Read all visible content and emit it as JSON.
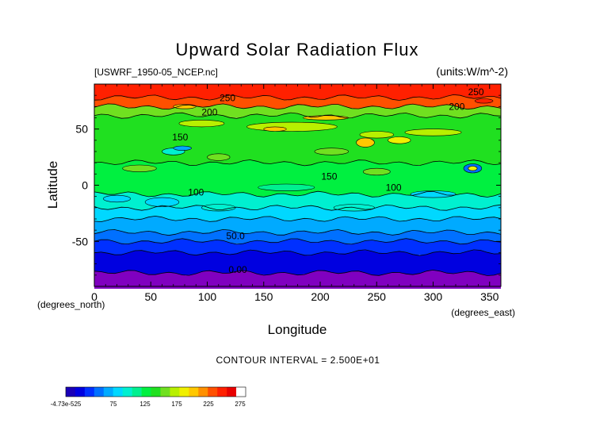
{
  "chart_data": {
    "type": "contour",
    "title": "Upward Solar Radiation Flux",
    "file_label": "[USWRF_1950-05_NCEP.nc]",
    "units_label": "(units:W/m^-2)",
    "xlabel": "Longitude",
    "ylabel": "Latitude",
    "x_unit_label": "(degrees_east)",
    "y_unit_label": "(degrees_north)",
    "xlim": [
      0,
      360
    ],
    "ylim": [
      -90,
      90
    ],
    "x_ticks": [
      0,
      50,
      100,
      150,
      200,
      250,
      300,
      350
    ],
    "y_ticks": [
      -50,
      0,
      50
    ],
    "contour_interval_text": "CONTOUR INTERVAL = 2.500E+01",
    "contour_labels": [
      {
        "text": "250",
        "lon": 118,
        "lat": 75
      },
      {
        "text": "200",
        "lon": 102,
        "lat": 62
      },
      {
        "text": "150",
        "lon": 76,
        "lat": 40
      },
      {
        "text": "150",
        "lon": 208,
        "lat": 5
      },
      {
        "text": "100",
        "lon": 90,
        "lat": -9
      },
      {
        "text": "100",
        "lon": 265,
        "lat": -5
      },
      {
        "text": "50.0",
        "lon": 125,
        "lat": -48
      },
      {
        "text": "0.00",
        "lon": 127,
        "lat": -78
      },
      {
        "text": "250",
        "lon": 338,
        "lat": 80
      },
      {
        "text": "200",
        "lon": 321,
        "lat": 67
      }
    ],
    "colorbar": {
      "tick_labels": [
        "-4.73e-525",
        "75",
        "125",
        "175",
        "225",
        "275"
      ],
      "colors": [
        "#1a00b8",
        "#0000e0",
        "#0030ff",
        "#0070ff",
        "#00aaff",
        "#00d8ff",
        "#00f0d0",
        "#00f090",
        "#00f040",
        "#20e020",
        "#70e020",
        "#b8f000",
        "#f0f000",
        "#ffc800",
        "#ff9000",
        "#ff5000",
        "#ff2000",
        "#e80000",
        "#ffffff"
      ]
    },
    "zonal_bands": [
      {
        "lat_from": 90,
        "lat_to": 78,
        "color": "#ff2000"
      },
      {
        "lat_from": 78,
        "lat_to": 70,
        "color": "#ff5000"
      },
      {
        "lat_from": 70,
        "lat_to": 62,
        "color": "#70e020"
      },
      {
        "lat_from": 62,
        "lat_to": 20,
        "color": "#20e020"
      },
      {
        "lat_from": 20,
        "lat_to": -8,
        "color": "#00f040"
      },
      {
        "lat_from": -8,
        "lat_to": -20,
        "color": "#00f0d0"
      },
      {
        "lat_from": -20,
        "lat_to": -30,
        "color": "#00d8ff"
      },
      {
        "lat_from": -30,
        "lat_to": -42,
        "color": "#00aaff"
      },
      {
        "lat_from": -42,
        "lat_to": -50,
        "color": "#0070ff"
      },
      {
        "lat_from": -50,
        "lat_to": -60,
        "color": "#0030ff"
      },
      {
        "lat_from": -60,
        "lat_to": -78,
        "color": "#0000e0"
      },
      {
        "lat_from": -78,
        "lat_to": -90,
        "color": "#8000c0"
      }
    ]
  }
}
